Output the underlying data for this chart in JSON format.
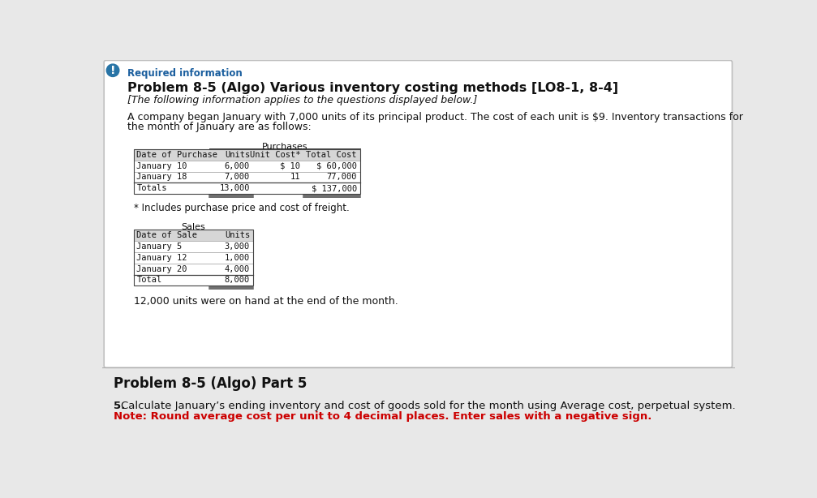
{
  "page_bg": "#e8e8e8",
  "card_bg": "#ffffff",
  "card_border": "#c0c0c0",
  "required_info_color": "#1a5e9e",
  "required_info_text": "Required information",
  "title_text": "Problem 8-5 (Algo) Various inventory costing methods [LO8-1, 8-4]",
  "subtitle_text": "[The following information applies to the questions displayed below.]",
  "body_text1": "A company began January with 7,000 units of its principal product. The cost of each unit is $9. Inventory transactions for",
  "body_text2": "the month of January are as follows:",
  "purchases_header": "Purchases",
  "purchases_col1": "Date of Purchase",
  "purchases_col2": "Units",
  "purchases_col3": "Unit Cost*",
  "purchases_col4": "Total Cost",
  "purchases_rows": [
    [
      "January 10",
      "6,000",
      "$ 10",
      "$ 60,000"
    ],
    [
      "January 18",
      "7,000",
      "11",
      "77,000"
    ],
    [
      "Totals",
      "13,000",
      "",
      "$ 137,000"
    ]
  ],
  "footnote": "* Includes purchase price and cost of freight.",
  "sales_header": "Sales",
  "sales_col1": "Date of Sale",
  "sales_col2": "Units",
  "sales_rows": [
    [
      "January 5",
      "3,000"
    ],
    [
      "January 12",
      "1,000"
    ],
    [
      "January 20",
      "4,000"
    ],
    [
      "Total",
      "8,000"
    ]
  ],
  "ending_inventory_text": "12,000 units were on hand at the end of the month.",
  "part5_header": "Problem 8-5 (Algo) Part 5",
  "part5_q_bold": "5.",
  "part5_q_text": " Calculate January’s ending inventory and cost of goods sold for the month using Average cost, perpetual system.",
  "part5_note_color": "#cc0000",
  "part5_note_text": "Note: Round average cost per unit to 4 decimal places. Enter sales with a negative sign.",
  "table_header_bg": "#d6d6d6",
  "table_border_color": "#444444",
  "table_inner_color": "#999999",
  "icon_color": "#2874a6"
}
